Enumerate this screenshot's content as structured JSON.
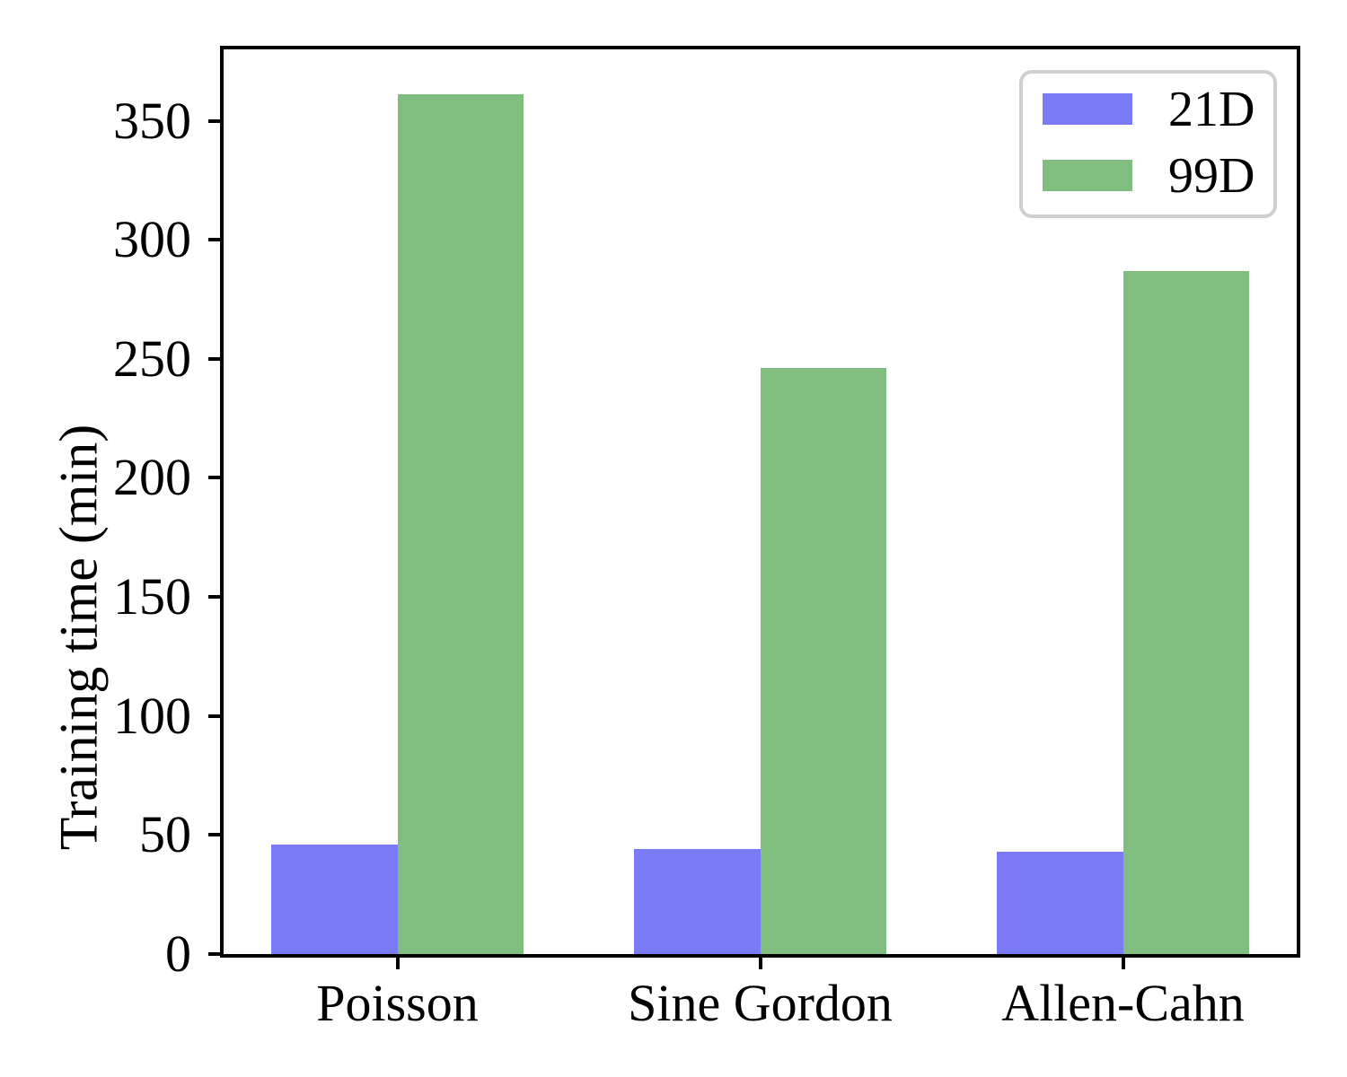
{
  "figure": {
    "background": "#ffffff",
    "axis_color": "#000000",
    "legend_border_color": "#cccccc"
  },
  "chart_data": {
    "type": "bar",
    "title": "",
    "xlabel": "",
    "ylabel": "Training time (min)",
    "categories": [
      "Poisson",
      "Sine Gordon",
      "Allen-Cahn"
    ],
    "series": [
      {
        "name": "21D",
        "color": "#7b7bf8",
        "values": [
          46,
          44,
          43
        ]
      },
      {
        "name": "99D",
        "color": "#80be80",
        "values": [
          361,
          246,
          287
        ]
      }
    ],
    "ylim": [
      0,
      380
    ],
    "yticks": [
      0,
      50,
      100,
      150,
      200,
      250,
      300,
      350
    ],
    "grid": false,
    "legend": {
      "position": "upper right",
      "entries": [
        "21D",
        "99D"
      ]
    }
  }
}
